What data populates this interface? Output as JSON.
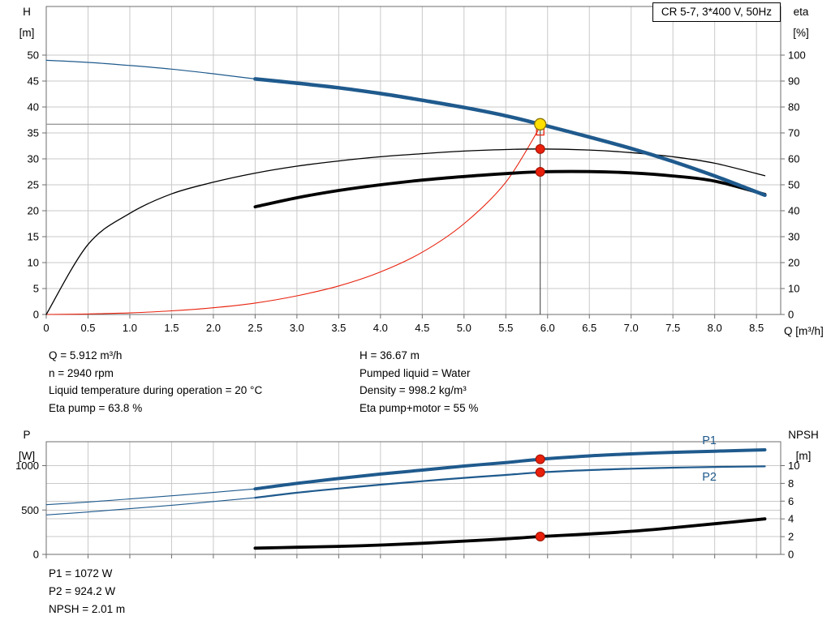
{
  "title_box": {
    "label": "CR 5-7, 3*400 V, 50Hz"
  },
  "colors": {
    "blue": "#1f5a8d",
    "black": "#000000",
    "red": "#e8200c",
    "red_edge": "#9e1000",
    "yellow": "#ffdf00",
    "yellow_edge": "#8a7400",
    "grid": "#c9c9c9",
    "frame": "#6e6e6e",
    "crosshair_h": "#9a9a9a",
    "crosshair_v": "#3a3a3a"
  },
  "axes": {
    "top": {
      "left_title": [
        "H",
        "[m]"
      ],
      "right_title": [
        "eta",
        "[%]"
      ],
      "x_title": "Q [m³/h]"
    },
    "bottom": {
      "left_title": [
        "P",
        "[W]"
      ],
      "right_title": [
        "NPSH",
        "[m]"
      ]
    }
  },
  "info_top": {
    "left": [
      "Q = 5.912 m³/h",
      "n = 2940 rpm",
      "Liquid temperature during operation = 20 °C",
      "Eta pump = 63.8 %"
    ],
    "right": [
      "H = 36.67 m",
      "Pumped liquid = Water",
      "Density = 998.2 kg/m³",
      "Eta pump+motor = 55 %"
    ]
  },
  "info_bottom": [
    "P1 = 1072 W",
    "P2 = 924.2 W",
    "NPSH = 2.01 m"
  ],
  "chart_data": [
    {
      "type": "line",
      "title": "CR 5-7, 3*400 V, 50Hz",
      "xlabel": "Q [m³/h]",
      "ylabel_left": "H [m]",
      "ylabel_right": "eta [%]",
      "xlim": [
        0,
        8.79
      ],
      "ylim_left": [
        0,
        59.4
      ],
      "ylim_right": [
        0,
        118.8
      ],
      "grid": true,
      "x_ticks": [
        "0",
        "0.5",
        "1.0",
        "1.5",
        "2.0",
        "2.5",
        "3.0",
        "3.5",
        "4.0",
        "4.5",
        "5.0",
        "5.5",
        "6.0",
        "6.5",
        "7.0",
        "7.5",
        "8.0",
        "8.5"
      ],
      "y_ticks_left": [
        0,
        5,
        10,
        15,
        20,
        25,
        30,
        35,
        40,
        45,
        50
      ],
      "y_ticks_right": [
        0,
        10,
        20,
        30,
        40,
        50,
        60,
        70,
        80,
        90,
        100
      ],
      "duty_point": {
        "Q": 5.912,
        "H": 36.67,
        "eta_pump_pct": 63.8,
        "eta_pump_motor_pct": 55
      },
      "crosshair": {
        "q": 5.912,
        "h": 36.67
      },
      "series": [
        {
          "name": "system-curve",
          "axis": "left",
          "color": "red",
          "width": 1.1,
          "x": [
            0,
            0.5,
            1,
            1.5,
            2,
            2.5,
            3,
            3.5,
            4,
            4.5,
            5,
            5.5,
            5.912
          ],
          "y": [
            0,
            0.1,
            0.3,
            0.7,
            1.3,
            2.2,
            3.6,
            5.5,
            8.2,
            12,
            17.5,
            25.5,
            36.2
          ]
        },
        {
          "name": "eta-pump-curve",
          "axis": "right",
          "color": "black",
          "width": 1.3,
          "x": [
            0,
            0.5,
            1,
            1.5,
            2,
            2.5,
            3,
            3.5,
            4,
            4.5,
            5,
            5.5,
            5.912,
            6.5,
            7,
            7.5,
            8,
            8.6
          ],
          "y": [
            0,
            27,
            39,
            46.5,
            51,
            54.5,
            57.2,
            59.2,
            60.8,
            62,
            63,
            63.6,
            63.8,
            63.4,
            62.4,
            60.8,
            58.3,
            53.5
          ]
        },
        {
          "name": "eta-pump-motor-curve",
          "axis": "right",
          "color": "black",
          "width": 3.8,
          "x": [
            2.5,
            3,
            3.5,
            4,
            4.5,
            5,
            5.5,
            5.912,
            6.5,
            7,
            7.5,
            8,
            8.6
          ],
          "y": [
            41.5,
            45,
            47.8,
            50,
            51.8,
            53.2,
            54.3,
            55,
            55.1,
            54.6,
            53.4,
            51.4,
            46.3
          ]
        },
        {
          "name": "head-curve-min-flow",
          "axis": "left",
          "color": "blue",
          "width": 1.2,
          "x": [
            0,
            0.5,
            1,
            1.5,
            2,
            2.5
          ],
          "y": [
            49,
            48.6,
            48,
            47.3,
            46.4,
            45.4
          ]
        },
        {
          "name": "head-curve",
          "axis": "left",
          "color": "blue",
          "width": 4.5,
          "x": [
            2.5,
            3,
            3.5,
            4,
            4.5,
            5,
            5.5,
            5.912,
            6.5,
            7,
            7.5,
            8,
            8.6
          ],
          "y": [
            45.4,
            44.6,
            43.7,
            42.6,
            41.3,
            39.9,
            38.3,
            36.67,
            34.2,
            32,
            29.5,
            26.7,
            23
          ]
        }
      ],
      "markers": [
        {
          "name": "rated-point-square",
          "shape": "square",
          "axis": "left",
          "q": 5.912,
          "v": 35.3,
          "color": "red"
        },
        {
          "name": "eta-pump-point",
          "shape": "dot",
          "axis": "right",
          "q": 5.912,
          "v": 63.8,
          "color": "red"
        },
        {
          "name": "eta-pump-motor-point",
          "shape": "dot",
          "axis": "right",
          "q": 5.912,
          "v": 55,
          "color": "red"
        },
        {
          "name": "duty-point",
          "shape": "circle",
          "axis": "left",
          "q": 5.912,
          "v": 36.67,
          "color": "yellow"
        }
      ]
    },
    {
      "type": "line",
      "ylabel_left": "P [W]",
      "ylabel_right": "NPSH [m]",
      "xlim": [
        0,
        8.79
      ],
      "ylim_left": [
        0,
        1269
      ],
      "ylim_right": [
        0,
        12.7
      ],
      "grid": true,
      "y_ticks_left": [
        0,
        500,
        1000
      ],
      "y_ticks_right": [
        0,
        2,
        4,
        6,
        8,
        10
      ],
      "duty_point": {
        "Q": 5.912,
        "P1_W": 1072,
        "P2_W": 924.2,
        "NPSH_m": 2.01
      },
      "series": [
        {
          "name": "p1-min-flow",
          "axis": "left",
          "color": "blue",
          "width": 1.1,
          "x": [
            0,
            0.5,
            1,
            1.5,
            2,
            2.5
          ],
          "y": [
            560,
            590,
            625,
            660,
            698,
            738
          ]
        },
        {
          "name": "p2-min-flow",
          "axis": "left",
          "color": "blue",
          "width": 1.1,
          "x": [
            0,
            0.5,
            1,
            1.5,
            2,
            2.5
          ],
          "y": [
            445,
            478,
            515,
            553,
            595,
            638
          ]
        },
        {
          "name": "npsh-curve",
          "axis": "right",
          "color": "black",
          "width": 3.8,
          "x": [
            2.5,
            3,
            3.5,
            4,
            4.5,
            5,
            5.5,
            5.912,
            6.5,
            7,
            7.5,
            8,
            8.6
          ],
          "y": [
            0.7,
            0.8,
            0.9,
            1.05,
            1.25,
            1.5,
            1.75,
            2.01,
            2.3,
            2.6,
            3,
            3.45,
            4
          ]
        },
        {
          "name": "p2-curve",
          "axis": "left",
          "color": "blue",
          "width": 2.2,
          "x": [
            2.5,
            3,
            3.5,
            4,
            4.5,
            5,
            5.5,
            5.912,
            6.5,
            7,
            7.5,
            8,
            8.6
          ],
          "y": [
            638,
            695,
            742,
            785,
            825,
            862,
            895,
            924.2,
            950,
            965,
            977,
            985,
            992
          ]
        },
        {
          "name": "p1-curve",
          "axis": "left",
          "color": "blue",
          "width": 4,
          "x": [
            2.5,
            3,
            3.5,
            4,
            4.5,
            5,
            5.5,
            5.912,
            6.5,
            7,
            7.5,
            8,
            8.6
          ],
          "y": [
            738,
            800,
            855,
            905,
            950,
            995,
            1035,
            1072,
            1110,
            1132,
            1150,
            1163,
            1178
          ]
        }
      ],
      "markers": [
        {
          "name": "p1-point",
          "shape": "dot",
          "axis": "left",
          "q": 5.912,
          "v": 1072,
          "color": "red"
        },
        {
          "name": "p2-point",
          "shape": "dot",
          "axis": "left",
          "q": 5.912,
          "v": 924.2,
          "color": "red"
        },
        {
          "name": "npsh-point",
          "shape": "dot",
          "axis": "right",
          "q": 5.912,
          "v": 2.01,
          "color": "red"
        }
      ],
      "curve_labels": [
        {
          "text": "P1",
          "x_q": 7.85,
          "v": 1242,
          "axis": "left"
        },
        {
          "text": "P2",
          "x_q": 7.85,
          "v": 830,
          "axis": "left"
        }
      ]
    }
  ]
}
